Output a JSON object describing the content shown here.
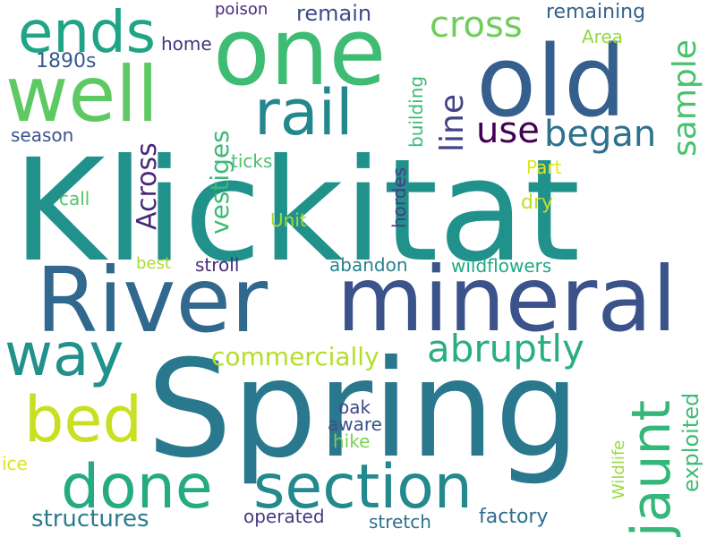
{
  "words": [
    {
      "text": "Klickitat",
      "color": "#21918c"
    },
    {
      "text": "Spring",
      "color": "#2a788e"
    },
    {
      "text": "River",
      "color": "#31688e"
    },
    {
      "text": "mineral",
      "color": "#3b528b"
    },
    {
      "text": "one",
      "color": "#3fbc73"
    },
    {
      "text": "old",
      "color": "#355f8d"
    },
    {
      "text": "well",
      "color": "#5ec962"
    },
    {
      "text": "rail",
      "color": "#23888e"
    },
    {
      "text": "ends",
      "color": "#20a486"
    },
    {
      "text": "way",
      "color": "#21918c"
    },
    {
      "text": "bed",
      "color": "#c8e020"
    },
    {
      "text": "done",
      "color": "#25ab82"
    },
    {
      "text": "section",
      "color": "#23898e"
    },
    {
      "text": "jaunt",
      "color": "#35b779"
    },
    {
      "text": "abruptly",
      "color": "#29af7f"
    },
    {
      "text": "cross",
      "color": "#6ece58"
    },
    {
      "text": "line",
      "color": "#414487"
    },
    {
      "text": "use",
      "color": "#440154"
    },
    {
      "text": "began",
      "color": "#2c728e"
    },
    {
      "text": "sample",
      "color": "#4ac16d"
    },
    {
      "text": "Across",
      "color": "#482878"
    },
    {
      "text": "vestiges",
      "color": "#3aba76"
    },
    {
      "text": "commercially",
      "color": "#b5de2b"
    },
    {
      "text": "exploited",
      "color": "#3dbc74"
    },
    {
      "text": "structures",
      "color": "#287c8e"
    },
    {
      "text": "factory",
      "color": "#2f6c8e"
    },
    {
      "text": "1890s",
      "color": "#375a8c"
    },
    {
      "text": "remain",
      "color": "#3e4c8a"
    },
    {
      "text": "remaining",
      "color": "#34618d"
    },
    {
      "text": "poison",
      "color": "#472c7a"
    },
    {
      "text": "home",
      "color": "#46337f"
    },
    {
      "text": "Area",
      "color": "#95d840"
    },
    {
      "text": "building",
      "color": "#3cbb75"
    },
    {
      "text": "season",
      "color": "#3a548c"
    },
    {
      "text": "ticks",
      "color": "#4cc26c"
    },
    {
      "text": "call",
      "color": "#54c568"
    },
    {
      "text": "Unit",
      "color": "#a2da37"
    },
    {
      "text": "hordes",
      "color": "#433e85"
    },
    {
      "text": "Part",
      "color": "#e5e419"
    },
    {
      "text": "dry",
      "color": "#bddf26"
    },
    {
      "text": "best",
      "color": "#a8db34"
    },
    {
      "text": "stroll",
      "color": "#482979"
    },
    {
      "text": "abandon",
      "color": "#26828e"
    },
    {
      "text": "wildflowers",
      "color": "#22a884"
    },
    {
      "text": "oak",
      "color": "#3e4a89"
    },
    {
      "text": "aware",
      "color": "#3b518b"
    },
    {
      "text": "hike",
      "color": "#7ad151"
    },
    {
      "text": "Wildlife",
      "color": "#9bd93c"
    },
    {
      "text": "ice",
      "color": "#dde318"
    },
    {
      "text": "operated",
      "color": "#443a83"
    },
    {
      "text": "stretch",
      "color": "#2c728e"
    }
  ]
}
